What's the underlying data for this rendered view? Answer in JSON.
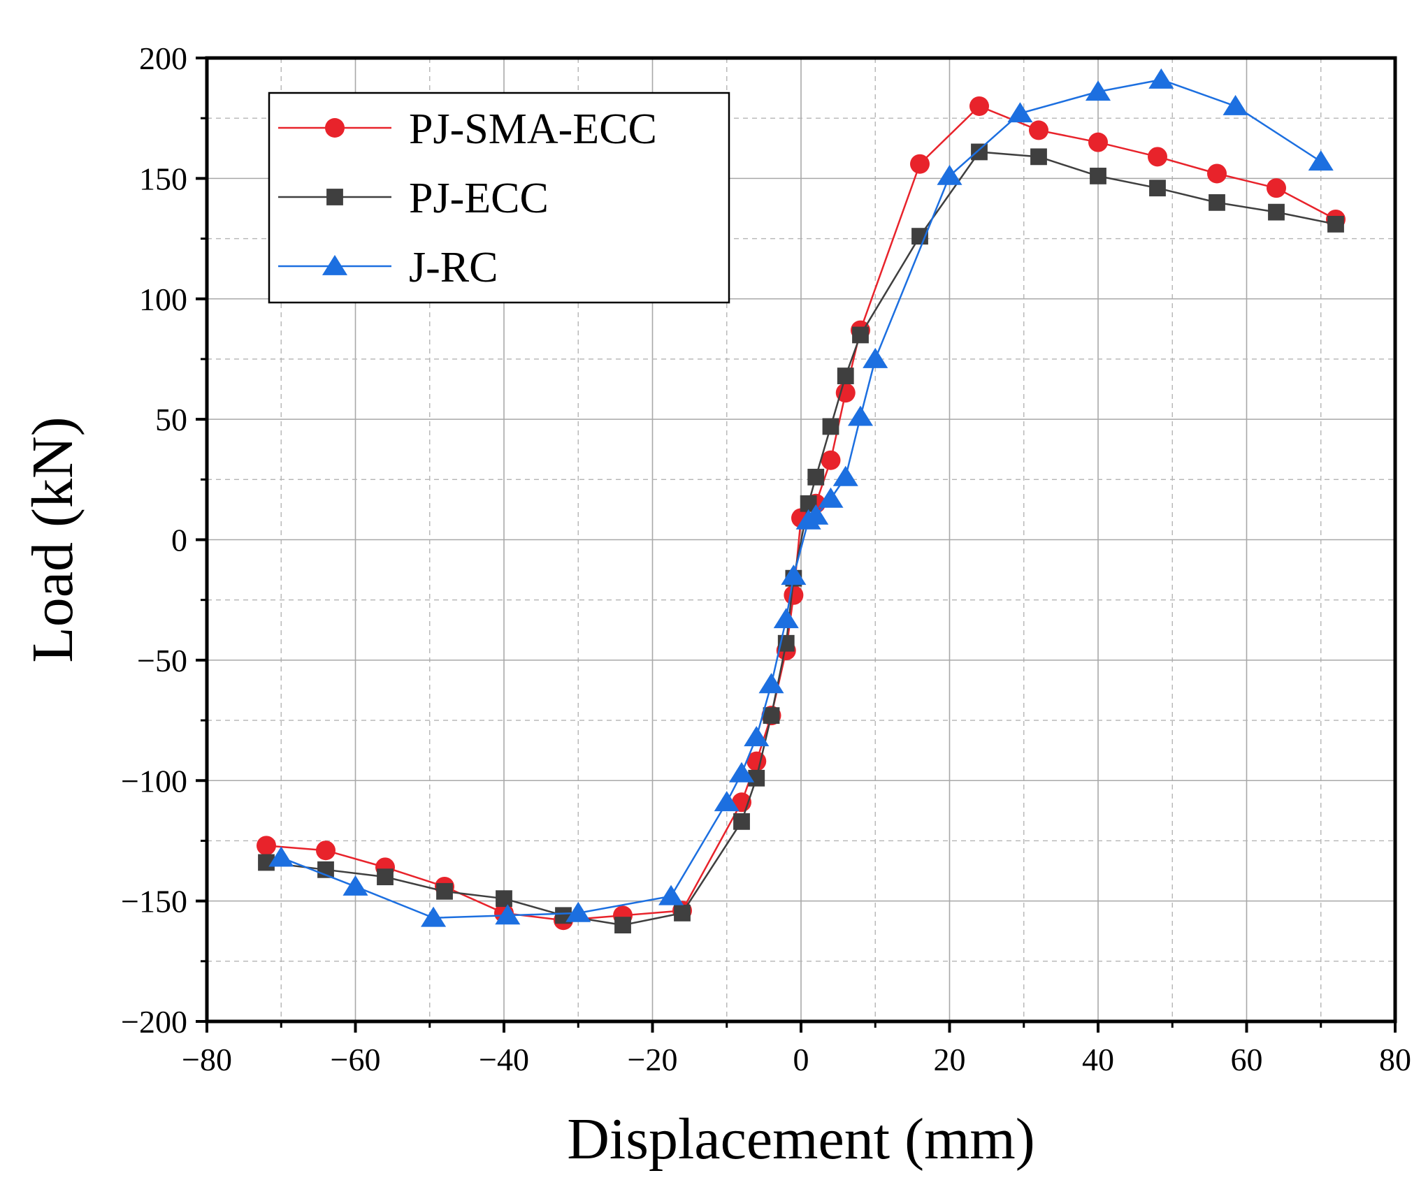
{
  "chart_data": {
    "type": "line",
    "title": "",
    "xlabel": "Displacement (mm)",
    "ylabel": "Load (kN)",
    "xlim": [
      -80,
      80
    ],
    "ylim": [
      -200,
      200
    ],
    "xticks": [
      -80,
      -60,
      -40,
      -20,
      0,
      20,
      40,
      60,
      80
    ],
    "yticks": [
      -200,
      -150,
      -100,
      -50,
      0,
      50,
      100,
      150,
      200
    ],
    "xtick_labels": [
      "−80",
      "−60",
      "−40",
      "−20",
      "0",
      "20",
      "40",
      "60",
      "80"
    ],
    "ytick_labels": [
      "−200",
      "−150",
      "−100",
      "−50",
      "0",
      "50",
      "100",
      "150",
      "200"
    ],
    "grid": true,
    "legend_position": "top-left",
    "series": [
      {
        "name": "PJ-SMA-ECC",
        "color": "#e8232b",
        "marker": "circle",
        "x": [
          -72,
          -64,
          -56,
          -48,
          -40,
          -32,
          -24,
          -16,
          -8,
          -6,
          -4,
          -2,
          -1,
          0,
          2,
          4,
          6,
          8,
          16,
          24,
          32,
          40,
          48,
          56,
          64,
          72
        ],
        "y": [
          -127,
          -129,
          -136,
          -144,
          -155,
          -158,
          -156,
          -154,
          -109,
          -92,
          -73,
          -46,
          -23,
          9,
          15,
          33,
          61,
          87,
          156,
          180,
          170,
          165,
          159,
          152,
          146,
          133
        ]
      },
      {
        "name": "PJ-ECC",
        "color": "#3f3f3f",
        "marker": "square",
        "x": [
          -72,
          -64,
          -56,
          -48,
          -40,
          -32,
          -24,
          -16,
          -8,
          -6,
          -4,
          -2,
          -1,
          1,
          2,
          4,
          6,
          8,
          16,
          24,
          32,
          40,
          48,
          56,
          64,
          72
        ],
        "y": [
          -134,
          -137,
          -140,
          -146,
          -149,
          -156,
          -160,
          -155,
          -117,
          -99,
          -73,
          -43,
          -16,
          15,
          26,
          47,
          68,
          85,
          126,
          161,
          159,
          151,
          146,
          140,
          136,
          131
        ]
      },
      {
        "name": "J-RC",
        "color": "#1c6fe0",
        "marker": "triangle",
        "x": [
          -70,
          -60,
          -49.5,
          -39.5,
          -30,
          -17.5,
          -10,
          -8,
          -6,
          -4,
          -2,
          -1,
          1,
          2,
          4,
          6,
          8,
          10,
          20,
          29.5,
          40,
          48.5,
          58.5,
          70
        ],
        "y": [
          -132,
          -144,
          -157,
          -156,
          -155,
          -148,
          -109,
          -97,
          -82,
          -60,
          -33,
          -15,
          8,
          10,
          17,
          26,
          51,
          75,
          151,
          177,
          186,
          191,
          180,
          157
        ]
      }
    ]
  }
}
